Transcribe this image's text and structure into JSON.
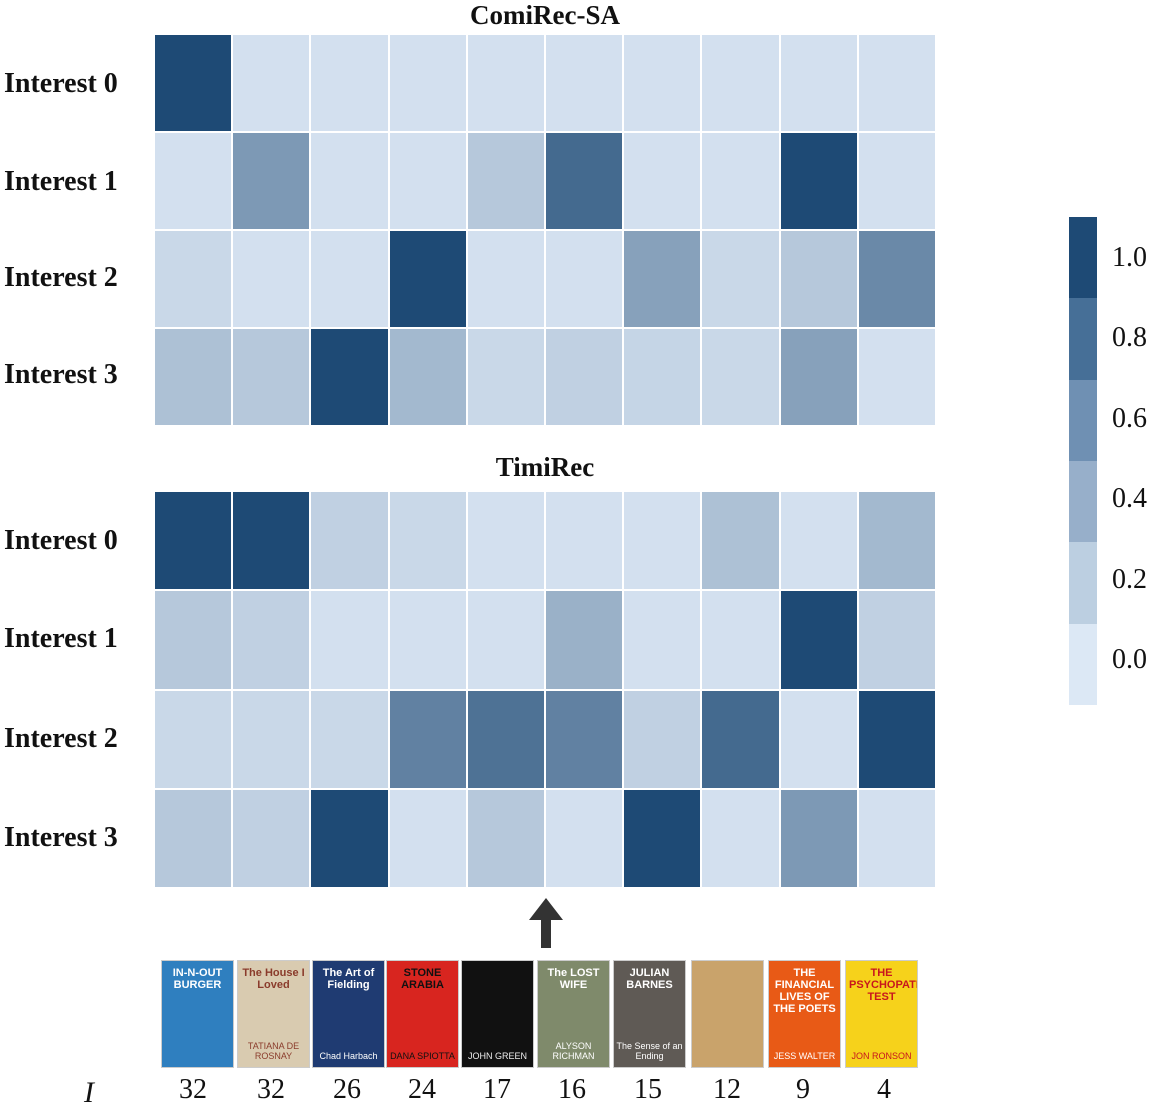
{
  "chart_data": [
    {
      "type": "heatmap",
      "title": "ComiRec-SA",
      "rows": [
        "Interest 0",
        "Interest 1",
        "Interest 2",
        "Interest 3"
      ],
      "values": [
        [
          1.0,
          0.05,
          0.05,
          0.05,
          0.05,
          0.05,
          0.05,
          0.05,
          0.05,
          0.05
        ],
        [
          0.05,
          0.5,
          0.05,
          0.05,
          0.2,
          0.8,
          0.05,
          0.05,
          1.0,
          0.05
        ],
        [
          0.1,
          0.05,
          0.05,
          1.0,
          0.05,
          0.05,
          0.45,
          0.1,
          0.2,
          0.6
        ],
        [
          0.25,
          0.2,
          1.0,
          0.3,
          0.1,
          0.15,
          0.12,
          0.1,
          0.45,
          0.05
        ]
      ]
    },
    {
      "type": "heatmap",
      "title": "TimiRec",
      "rows": [
        "Interest 0",
        "Interest 1",
        "Interest 2",
        "Interest 3"
      ],
      "values": [
        [
          1.0,
          1.0,
          0.15,
          0.1,
          0.05,
          0.05,
          0.05,
          0.25,
          0.05,
          0.3
        ],
        [
          0.2,
          0.15,
          0.05,
          0.05,
          0.05,
          0.35,
          0.05,
          0.05,
          1.0,
          0.15
        ],
        [
          0.1,
          0.1,
          0.1,
          0.65,
          0.75,
          0.65,
          0.15,
          0.8,
          0.05,
          1.0
        ],
        [
          0.2,
          0.15,
          1.0,
          0.05,
          0.2,
          0.05,
          1.0,
          0.05,
          0.5,
          0.05
        ]
      ]
    }
  ],
  "colorbar": {
    "ticks": [
      "1.0",
      "0.8",
      "0.6",
      "0.4",
      "0.2",
      "0.0"
    ],
    "steps": [
      "#1e4a75",
      "#466f97",
      "#6f90b3",
      "#97afca",
      "#bccfe1",
      "#dce8f5"
    ]
  },
  "colors": {
    "low": "#dce8f5",
    "high": "#1e4a75"
  },
  "items": {
    "axis_label": "I",
    "counts": [
      "32",
      "32",
      "26",
      "24",
      "17",
      "16",
      "15",
      "12",
      "9",
      "4"
    ],
    "books": [
      {
        "title": "IN-N-OUT BURGER",
        "author": "",
        "bg": "#2f7fbf",
        "fg": "#ffffff"
      },
      {
        "title": "The House I Loved",
        "author": "TATIANA DE ROSNAY",
        "bg": "#d9cbb0",
        "fg": "#8a3b2b"
      },
      {
        "title": "The Art of Fielding",
        "author": "Chad Harbach",
        "bg": "#1f3b72",
        "fg": "#ffffff"
      },
      {
        "title": "STONE ARABIA",
        "author": "DANA SPIOTTA",
        "bg": "#d8251f",
        "fg": "#111111"
      },
      {
        "title": "",
        "author": "JOHN GREEN",
        "bg": "#111111",
        "fg": "#eeeeee"
      },
      {
        "title": "The LOST WIFE",
        "author": "ALYSON RICHMAN",
        "bg": "#7f8a6b",
        "fg": "#ffffff"
      },
      {
        "title": "JULIAN BARNES",
        "author": "The Sense of an Ending",
        "bg": "#5f5a55",
        "fg": "#ffffff"
      },
      {
        "title": "",
        "author": "",
        "bg": "#c9a36b",
        "fg": "#2a1a0a"
      },
      {
        "title": "THE FINANCIAL LIVES OF THE POETS",
        "author": "JESS WALTER",
        "bg": "#e85a16",
        "fg": "#ffffff"
      },
      {
        "title": "THE PSYCHOPATH TEST",
        "author": "JON RONSON",
        "bg": "#f6d21b",
        "fg": "#c8161d"
      }
    ]
  }
}
